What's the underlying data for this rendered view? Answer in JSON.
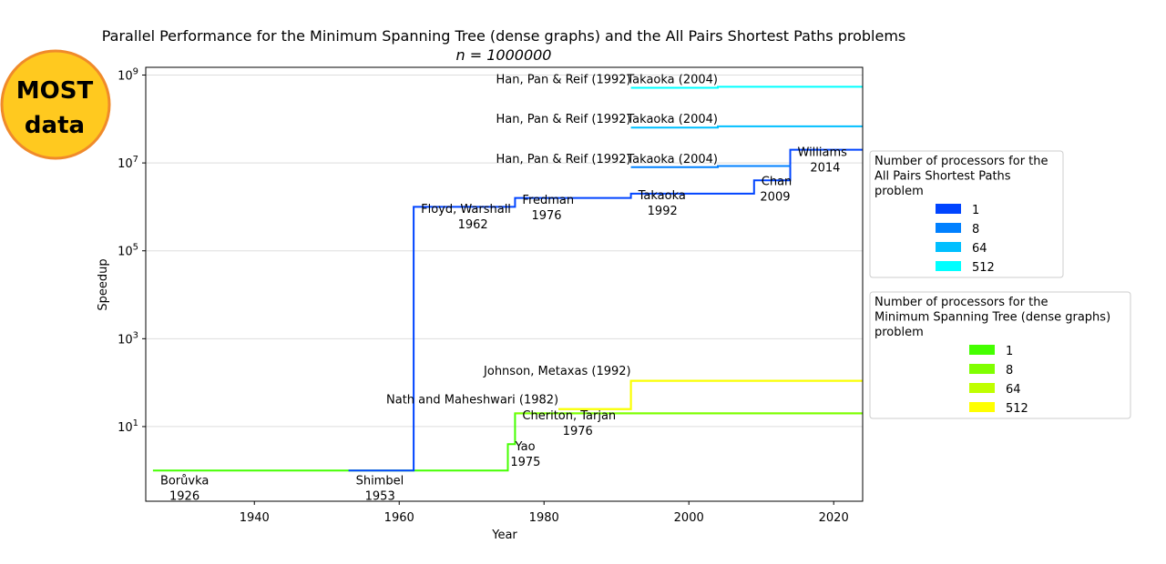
{
  "logo": {
    "line1": "MOST",
    "line2": "data"
  },
  "chart_data": {
    "type": "line",
    "title": "Parallel Performance for the Minimum Spanning Tree (dense graphs) and the All Pairs Shortest Paths problems",
    "subtitle": "n = 1000000",
    "xlabel": "Year",
    "ylabel": "Speedup",
    "xlim": [
      1925,
      2024
    ],
    "ylim": [
      0.2,
      1500000000
    ],
    "yscale": "log",
    "xticks": [
      1940,
      1960,
      1980,
      2000,
      2020
    ],
    "yticks": [
      {
        "value": 10,
        "label": "10^1"
      },
      {
        "value": 1000,
        "label": "10^3"
      },
      {
        "value": 100000,
        "label": "10^5"
      },
      {
        "value": 10000000,
        "label": "10^7"
      },
      {
        "value": 1000000000,
        "label": "10^9"
      }
    ],
    "grid": "horizontal",
    "legends": [
      {
        "placement": "right-upper",
        "title_lines": [
          "Number of processors for the",
          "All Pairs Shortest Paths",
          "problem"
        ],
        "entries": [
          {
            "label": "1",
            "color": "#0044ff"
          },
          {
            "label": "8",
            "color": "#0080ff"
          },
          {
            "label": "64",
            "color": "#00bfff"
          },
          {
            "label": "512",
            "color": "#00ffff"
          }
        ]
      },
      {
        "placement": "right-lower",
        "title_lines": [
          "Number of processors for the",
          "Minimum Spanning Tree (dense graphs)",
          "problem"
        ],
        "entries": [
          {
            "label": "1",
            "color": "#44ff00"
          },
          {
            "label": "8",
            "color": "#80ff00"
          },
          {
            "label": "64",
            "color": "#bfff00"
          },
          {
            "label": "512",
            "color": "#ffff00"
          }
        ]
      }
    ],
    "series": [
      {
        "name": "1",
        "color": "#44ff00",
        "points": [
          [
            1926,
            1
          ],
          [
            1975,
            1
          ],
          [
            1975,
            4
          ],
          [
            1976,
            4
          ],
          [
            1976,
            20
          ],
          [
            2024,
            20
          ]
        ]
      },
      {
        "name": "8",
        "color": "#80ff00",
        "points": [
          [
            1976,
            20
          ],
          [
            2024,
            20
          ]
        ]
      },
      {
        "name": "64",
        "color": "#bfff00",
        "points": [
          [
            1982,
            25
          ],
          [
            1992,
            25
          ],
          [
            1992,
            110
          ],
          [
            2024,
            110
          ]
        ]
      },
      {
        "name": "512",
        "color": "#ffff00",
        "points": [
          [
            1982,
            25
          ],
          [
            1992,
            25
          ],
          [
            1992,
            110
          ],
          [
            2024,
            110
          ]
        ]
      },
      {
        "name": "1",
        "color": "#0044ff",
        "points": [
          [
            1953,
            1
          ],
          [
            1962,
            1
          ],
          [
            1962,
            1000000
          ],
          [
            1976,
            1000000
          ],
          [
            1976,
            1600000
          ],
          [
            1992,
            1600000
          ],
          [
            1992,
            2000000
          ],
          [
            2009,
            2000000
          ],
          [
            2009,
            4000000
          ],
          [
            2014,
            4000000
          ],
          [
            2014,
            20000000
          ],
          [
            2024,
            20000000
          ]
        ]
      },
      {
        "name": "8",
        "color": "#0080ff",
        "points": [
          [
            1992,
            8000000
          ],
          [
            2004,
            8000000
          ],
          [
            2004,
            8500000
          ],
          [
            2014,
            8500000
          ]
        ]
      },
      {
        "name": "64",
        "color": "#00bfff",
        "points": [
          [
            1992,
            64000000
          ],
          [
            2004,
            64000000
          ],
          [
            2004,
            68000000
          ],
          [
            2024,
            68000000
          ]
        ]
      },
      {
        "name": "512",
        "color": "#00ffff",
        "points": [
          [
            1992,
            512000000
          ],
          [
            2004,
            512000000
          ],
          [
            2004,
            540000000
          ],
          [
            2024,
            540000000
          ]
        ]
      }
    ],
    "annotations": [
      {
        "lines": [
          "Borůvka",
          "1926"
        ],
        "x": 1926,
        "y": 0.48,
        "anchor": "start"
      },
      {
        "lines": [
          "Shimbel",
          "1953"
        ],
        "x": 1953,
        "y": 0.48,
        "anchor": "start"
      },
      {
        "lines": [
          "Floyd, Warshall",
          "1962"
        ],
        "x": 1962,
        "y": 730000,
        "anchor": "start"
      },
      {
        "lines": [
          "Fredman",
          "1976"
        ],
        "x": 1976,
        "y": 1180000,
        "anchor": "start"
      },
      {
        "lines": [
          "Takaoka",
          "1992"
        ],
        "x": 1992,
        "y": 1500000,
        "anchor": "start"
      },
      {
        "lines": [
          "Chan",
          "2009"
        ],
        "x": 2009,
        "y": 3100000,
        "anchor": "start"
      },
      {
        "lines": [
          "Williams",
          "2014"
        ],
        "x": 2014,
        "y": 14500000,
        "anchor": "start"
      },
      {
        "lines": [
          "Yao",
          "1975"
        ],
        "x": 1975,
        "y": 2.9,
        "anchor": "start"
      },
      {
        "lines": [
          "Cheriton, Tarjan",
          "1976"
        ],
        "x": 1976,
        "y": 14.5,
        "anchor": "start"
      },
      {
        "lines": [
          "Nath and Maheshwari (1982)"
        ],
        "x": 1982,
        "y": 34,
        "anchor": "end"
      },
      {
        "lines": [
          "Johnson, Metaxas (1992)"
        ],
        "x": 1992,
        "y": 150,
        "anchor": "end"
      },
      {
        "lines": [
          "Han, Pan & Reif (1992)"
        ],
        "x": 1992,
        "y": 10000000,
        "anchor": "end"
      },
      {
        "lines": [
          "Han, Pan & Reif (1992)"
        ],
        "x": 1992,
        "y": 82000000,
        "anchor": "end"
      },
      {
        "lines": [
          "Han, Pan & Reif (1992)"
        ],
        "x": 1992,
        "y": 650000000,
        "anchor": "end"
      },
      {
        "lines": [
          "Takaoka (2004)"
        ],
        "x": 2004,
        "y": 10000000,
        "anchor": "end"
      },
      {
        "lines": [
          "Takaoka (2004)"
        ],
        "x": 2004,
        "y": 82000000,
        "anchor": "end"
      },
      {
        "lines": [
          "Takaoka (2004)"
        ],
        "x": 2004,
        "y": 650000000,
        "anchor": "end"
      }
    ]
  }
}
